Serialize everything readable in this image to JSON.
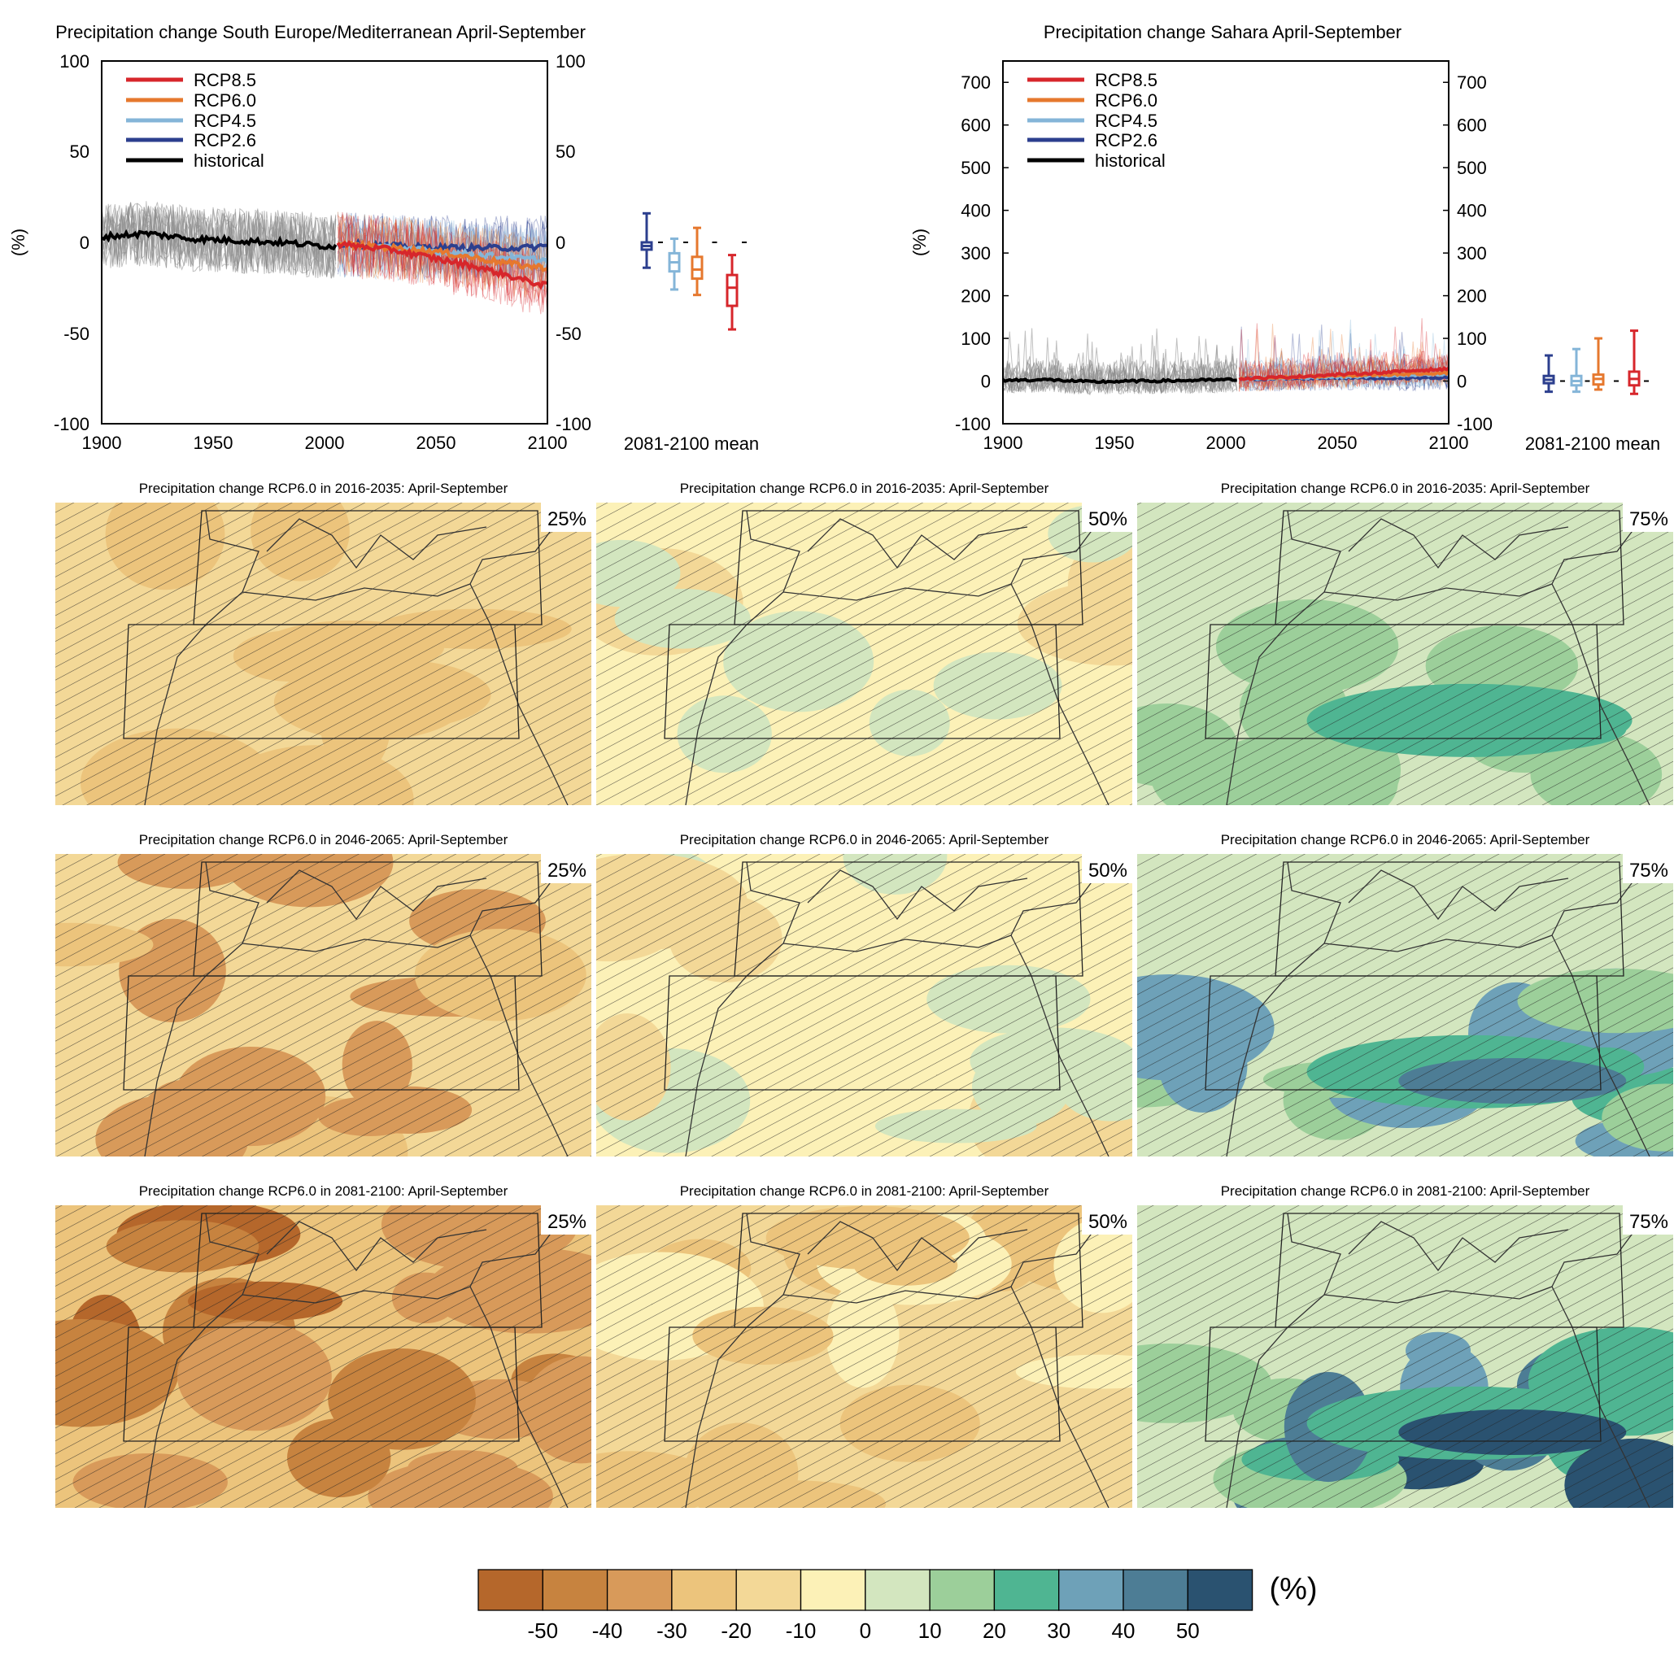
{
  "colors": {
    "rcp85": "#d7262b",
    "rcp60": "#e6782e",
    "rcp45": "#84b5d8",
    "rcp26": "#2c3f8e",
    "historical": "#000000",
    "model_spread": "#8c8c8c",
    "colorbar": [
      "#b5672b",
      "#c7833f",
      "#d89a5a",
      "#ecc47c",
      "#f3d897",
      "#fcf1b7",
      "#d3e6bf",
      "#9ccf9a",
      "#4fb592",
      "#6ea1b8",
      "#4d7d95",
      "#2a5270"
    ]
  },
  "timeseries_panels": [
    {
      "title": "Precipitation change South Europe/Mediterranean April-September",
      "ylabel": "(%)",
      "legend_labels": [
        "RCP8.5",
        "RCP6.0",
        "RCP4.5",
        "RCP2.6",
        "historical"
      ],
      "xticks": [
        "1900",
        "1950",
        "2000",
        "2050",
        "2100"
      ],
      "yticks_left": [
        "100",
        "50",
        "0",
        "-50",
        "-100"
      ],
      "yticks_right": [
        "100",
        "50",
        "0",
        "-50",
        "-100"
      ],
      "box_label": "2081-2100 mean"
    },
    {
      "title": "Precipitation change Sahara April-September",
      "ylabel": "(%)",
      "legend_labels": [
        "RCP8.5",
        "RCP6.0",
        "RCP4.5",
        "RCP2.6",
        "historical"
      ],
      "xticks": [
        "1900",
        "1950",
        "2000",
        "2050",
        "2100"
      ],
      "yticks_left": [
        "700",
        "600",
        "500",
        "400",
        "300",
        "200",
        "100",
        "0",
        "-100"
      ],
      "yticks_right": [
        "700",
        "600",
        "500",
        "400",
        "300",
        "200",
        "100",
        "0",
        "-100"
      ],
      "box_label": "2081-2100 mean"
    }
  ],
  "map_panels": [
    {
      "title": "Precipitation change RCP6.0 in 2016-2035: April-September",
      "percentile": "25%"
    },
    {
      "title": "Precipitation change RCP6.0 in 2016-2035: April-September",
      "percentile": "50%"
    },
    {
      "title": "Precipitation change RCP6.0 in 2016-2035: April-September",
      "percentile": "75%"
    },
    {
      "title": "Precipitation change RCP6.0 in 2046-2065: April-September",
      "percentile": "25%"
    },
    {
      "title": "Precipitation change RCP6.0 in 2046-2065: April-September",
      "percentile": "50%"
    },
    {
      "title": "Precipitation change RCP6.0 in 2046-2065: April-September",
      "percentile": "75%"
    },
    {
      "title": "Precipitation change RCP6.0 in 2081-2100: April-September",
      "percentile": "25%"
    },
    {
      "title": "Precipitation change RCP6.0 in 2081-2100: April-September",
      "percentile": "50%"
    },
    {
      "title": "Precipitation change RCP6.0 in 2081-2100: April-September",
      "percentile": "75%"
    }
  ],
  "colorbar": {
    "tick_labels": [
      "-50",
      "-40",
      "-30",
      "-20",
      "-10",
      "0",
      "10",
      "20",
      "30",
      "40",
      "50"
    ],
    "unit": "(%)"
  },
  "chart_data": [
    {
      "type": "line",
      "title": "Precipitation change South Europe/Mediterranean April-September",
      "ylabel": "(%)",
      "xlim": [
        1900,
        2100
      ],
      "ylim": [
        -100,
        100
      ],
      "series": [
        {
          "name": "historical",
          "x": [
            1900,
            1920,
            1940,
            1960,
            1980,
            2000,
            2005
          ],
          "values": [
            3,
            5,
            2,
            1,
            0,
            -2,
            -2
          ]
        },
        {
          "name": "RCP2.6",
          "x": [
            2006,
            2030,
            2050,
            2070,
            2090,
            2100
          ],
          "values": [
            -1,
            -2,
            -3,
            -3,
            -3,
            -2
          ]
        },
        {
          "name": "RCP4.5",
          "x": [
            2006,
            2030,
            2050,
            2070,
            2090,
            2100
          ],
          "values": [
            -1,
            -3,
            -5,
            -7,
            -9,
            -10
          ]
        },
        {
          "name": "RCP6.0",
          "x": [
            2006,
            2030,
            2050,
            2070,
            2090,
            2100
          ],
          "values": [
            -1,
            -3,
            -5,
            -9,
            -13,
            -14
          ]
        },
        {
          "name": "RCP8.5",
          "x": [
            2006,
            2030,
            2050,
            2070,
            2090,
            2100
          ],
          "values": [
            -1,
            -4,
            -9,
            -14,
            -21,
            -24
          ]
        }
      ],
      "box_2081_2100": [
        {
          "name": "RCP2.6",
          "whisker_low": -14,
          "q1": -4,
          "median": -2,
          "q3": 0,
          "whisker_high": 16
        },
        {
          "name": "RCP4.5",
          "whisker_low": -26,
          "q1": -16,
          "median": -11,
          "q3": -6,
          "whisker_high": 2
        },
        {
          "name": "RCP6.0",
          "whisker_low": -29,
          "q1": -20,
          "median": -15,
          "q3": -8,
          "whisker_high": 8
        },
        {
          "name": "RCP8.5",
          "whisker_low": -48,
          "q1": -35,
          "median": -25,
          "q3": -18,
          "whisker_high": -7
        }
      ]
    },
    {
      "type": "line",
      "title": "Precipitation change Sahara April-September",
      "ylabel": "(%)",
      "xlim": [
        1900,
        2100
      ],
      "ylim": [
        -100,
        750
      ],
      "series": [
        {
          "name": "historical",
          "x": [
            1900,
            1920,
            1940,
            1960,
            1980,
            2000,
            2005
          ],
          "values": [
            2,
            3,
            -2,
            0,
            1,
            3,
            3
          ]
        },
        {
          "name": "RCP2.6",
          "x": [
            2006,
            2030,
            2050,
            2070,
            2090,
            2100
          ],
          "values": [
            5,
            6,
            8,
            7,
            8,
            8
          ]
        },
        {
          "name": "RCP4.5",
          "x": [
            2006,
            2030,
            2050,
            2070,
            2090,
            2100
          ],
          "values": [
            5,
            8,
            10,
            12,
            14,
            15
          ]
        },
        {
          "name": "RCP6.0",
          "x": [
            2006,
            2030,
            2050,
            2070,
            2090,
            2100
          ],
          "values": [
            5,
            9,
            12,
            15,
            18,
            20
          ]
        },
        {
          "name": "RCP8.5",
          "x": [
            2006,
            2030,
            2050,
            2070,
            2090,
            2100
          ],
          "values": [
            5,
            10,
            15,
            20,
            26,
            28
          ]
        }
      ],
      "box_2081_2100": [
        {
          "name": "RCP2.6",
          "whisker_low": -25,
          "q1": -5,
          "median": 3,
          "q3": 12,
          "whisker_high": 60
        },
        {
          "name": "RCP4.5",
          "whisker_low": -25,
          "q1": -10,
          "median": 0,
          "q3": 12,
          "whisker_high": 75
        },
        {
          "name": "RCP6.0",
          "whisker_low": -20,
          "q1": -8,
          "median": 5,
          "q3": 15,
          "whisker_high": 100
        },
        {
          "name": "RCP8.5",
          "whisker_low": -30,
          "q1": -10,
          "median": 5,
          "q3": 22,
          "whisker_high": 118
        }
      ]
    }
  ]
}
